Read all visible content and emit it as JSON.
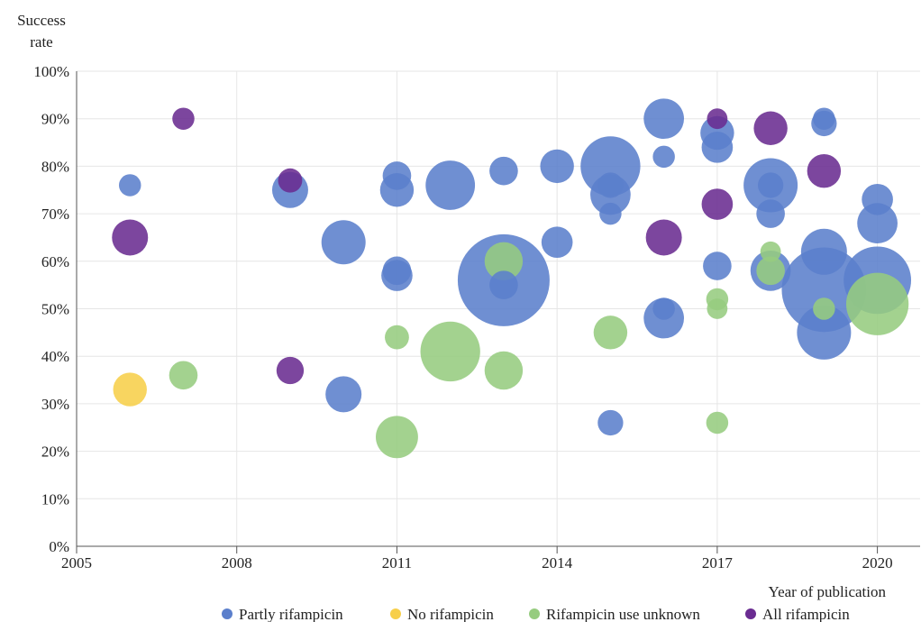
{
  "chart_data": {
    "type": "scatter",
    "subtype": "bubble",
    "ylabel_lines": [
      "Success",
      "rate"
    ],
    "xlabel": "Year of publication",
    "xlim": [
      2005,
      2020.8
    ],
    "ylim": [
      0,
      100
    ],
    "x_ticks": [
      2005,
      2008,
      2011,
      2014,
      2017,
      2020
    ],
    "y_ticks": [
      0,
      10,
      20,
      30,
      40,
      50,
      60,
      70,
      80,
      90,
      100
    ],
    "y_tick_labels": [
      "0%",
      "10%",
      "20%",
      "30%",
      "40%",
      "50%",
      "60%",
      "70%",
      "80%",
      "90%",
      "100%"
    ],
    "grid": true,
    "legend_position": "bottom",
    "series": [
      {
        "name": "Partly rifampicin",
        "color": "#5b7fcc",
        "points": [
          {
            "x": 2006,
            "y": 76,
            "size": 1.5
          },
          {
            "x": 2009,
            "y": 75,
            "size": 4
          },
          {
            "x": 2010,
            "y": 64,
            "size": 6
          },
          {
            "x": 2010,
            "y": 32,
            "size": 4
          },
          {
            "x": 2011,
            "y": 78,
            "size": 2.5
          },
          {
            "x": 2011,
            "y": 75,
            "size": 3.5
          },
          {
            "x": 2011,
            "y": 58,
            "size": 2.5
          },
          {
            "x": 2011,
            "y": 57,
            "size": 3
          },
          {
            "x": 2012,
            "y": 76,
            "size": 7.5
          },
          {
            "x": 2013,
            "y": 79,
            "size": 2.5
          },
          {
            "x": 2013,
            "y": 56,
            "size": 26
          },
          {
            "x": 2013,
            "y": 55,
            "size": 2.5
          },
          {
            "x": 2014,
            "y": 80,
            "size": 3.5
          },
          {
            "x": 2014,
            "y": 64,
            "size": 3
          },
          {
            "x": 2015,
            "y": 80,
            "size": 11
          },
          {
            "x": 2015,
            "y": 76,
            "size": 2
          },
          {
            "x": 2015,
            "y": 74,
            "size": 5
          },
          {
            "x": 2015,
            "y": 70,
            "size": 1.5
          },
          {
            "x": 2015,
            "y": 26,
            "size": 2
          },
          {
            "x": 2016,
            "y": 90,
            "size": 5
          },
          {
            "x": 2016,
            "y": 82,
            "size": 1.5
          },
          {
            "x": 2016,
            "y": 50,
            "size": 1.5
          },
          {
            "x": 2016,
            "y": 48,
            "size": 5
          },
          {
            "x": 2017,
            "y": 87,
            "size": 3.5
          },
          {
            "x": 2017,
            "y": 84,
            "size": 3
          },
          {
            "x": 2017,
            "y": 59,
            "size": 2.5
          },
          {
            "x": 2018,
            "y": 76,
            "size": 9
          },
          {
            "x": 2018,
            "y": 76,
            "size": 2
          },
          {
            "x": 2018,
            "y": 70,
            "size": 2.5
          },
          {
            "x": 2018,
            "y": 58,
            "size": 5
          },
          {
            "x": 2019,
            "y": 90,
            "size": 1.5
          },
          {
            "x": 2019,
            "y": 89,
            "size": 2
          },
          {
            "x": 2019,
            "y": 62,
            "size": 6.5
          },
          {
            "x": 2019,
            "y": 54,
            "size": 22
          },
          {
            "x": 2019,
            "y": 45,
            "size": 9
          },
          {
            "x": 2020,
            "y": 73,
            "size": 3
          },
          {
            "x": 2020,
            "y": 68,
            "size": 5
          },
          {
            "x": 2020,
            "y": 56,
            "size": 14
          }
        ]
      },
      {
        "name": "No rifampicin",
        "color": "#f7cf4a",
        "points": [
          {
            "x": 2006,
            "y": 33,
            "size": 3.5
          }
        ]
      },
      {
        "name": "Rifampicin use unknown",
        "color": "#96cc7f",
        "points": [
          {
            "x": 2007,
            "y": 36,
            "size": 2.5
          },
          {
            "x": 2011,
            "y": 44,
            "size": 1.8
          },
          {
            "x": 2011,
            "y": 23,
            "size": 5.5
          },
          {
            "x": 2012,
            "y": 41,
            "size": 11
          },
          {
            "x": 2013,
            "y": 60,
            "size": 4.5
          },
          {
            "x": 2013,
            "y": 37,
            "size": 4.5
          },
          {
            "x": 2015,
            "y": 45,
            "size": 3.5
          },
          {
            "x": 2017,
            "y": 52,
            "size": 1.5
          },
          {
            "x": 2017,
            "y": 50,
            "size": 1.3
          },
          {
            "x": 2017,
            "y": 26,
            "size": 1.5
          },
          {
            "x": 2018,
            "y": 62,
            "size": 1.3
          },
          {
            "x": 2018,
            "y": 58,
            "size": 2.5
          },
          {
            "x": 2019,
            "y": 50,
            "size": 1.5
          },
          {
            "x": 2020,
            "y": 51,
            "size": 12
          }
        ]
      },
      {
        "name": "All rifampicin",
        "color": "#6a2c91",
        "points": [
          {
            "x": 2006,
            "y": 65,
            "size": 4
          },
          {
            "x": 2007,
            "y": 90,
            "size": 1.5
          },
          {
            "x": 2009,
            "y": 77,
            "size": 1.8
          },
          {
            "x": 2009,
            "y": 37,
            "size": 2.3
          },
          {
            "x": 2016,
            "y": 65,
            "size": 4
          },
          {
            "x": 2017,
            "y": 90,
            "size": 1.3
          },
          {
            "x": 2017,
            "y": 72,
            "size": 3
          },
          {
            "x": 2018,
            "y": 88,
            "size": 3.5
          },
          {
            "x": 2019,
            "y": 79,
            "size": 3.5
          }
        ]
      }
    ]
  }
}
